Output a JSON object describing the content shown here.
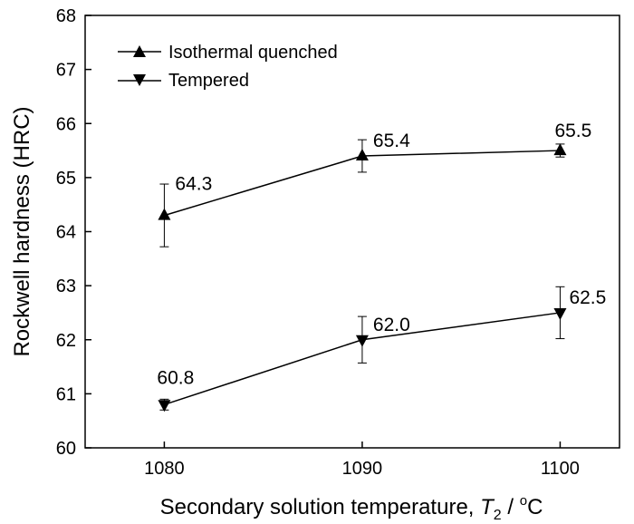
{
  "chart_data": {
    "type": "line",
    "xlabel_prefix": "Secondary solution temperature, ",
    "xlabel_var": "T",
    "xlabel_sub": "2",
    "xlabel_sep": " / ",
    "xlabel_deg": "o",
    "xlabel_unit": "C",
    "ylabel": "Rockwell hardness (HRC)",
    "x": [
      1080,
      1090,
      1100
    ],
    "xticks": [
      "1080",
      "1090",
      "1100"
    ],
    "xlim": [
      1076,
      1103
    ],
    "ylim": [
      60,
      68
    ],
    "yticks": [
      "60",
      "61",
      "62",
      "63",
      "64",
      "65",
      "66",
      "67",
      "68"
    ],
    "legend_position": "top-left",
    "grid": false,
    "series": [
      {
        "name": "Isothermal quenched",
        "marker": "triangle-up",
        "color": "#000000",
        "values": [
          64.3,
          65.4,
          65.5
        ],
        "errors": [
          0.58,
          0.3,
          0.12
        ],
        "labels": [
          "64.3",
          "65.4",
          "65.5"
        ]
      },
      {
        "name": "Tempered",
        "marker": "triangle-down",
        "color": "#000000",
        "values": [
          60.8,
          62.0,
          62.5
        ],
        "errors": [
          0.1,
          0.43,
          0.48
        ],
        "labels": [
          "60.8",
          "62.0",
          "62.5"
        ]
      }
    ]
  }
}
